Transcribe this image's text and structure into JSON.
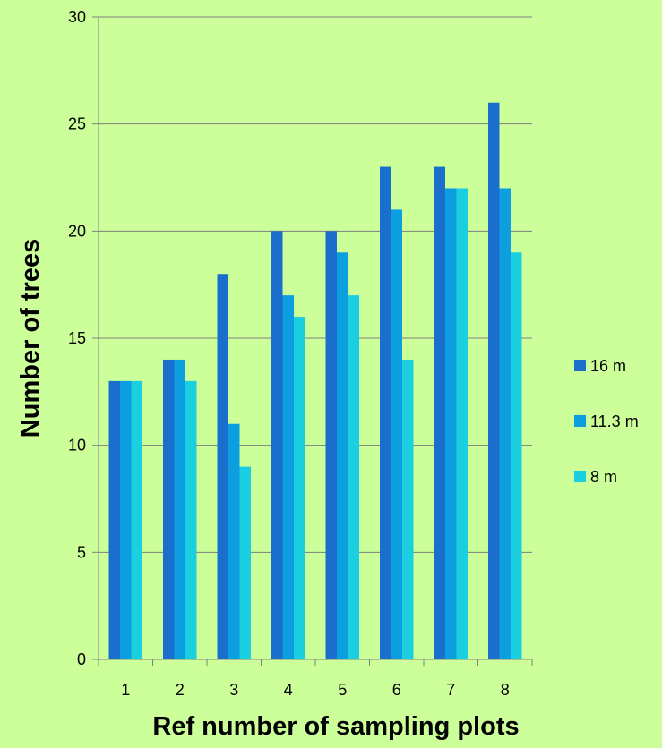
{
  "chart_data": {
    "type": "bar",
    "title": "",
    "xlabel": "Ref number of sampling plots",
    "ylabel": "Number of trees",
    "categories": [
      "1",
      "2",
      "3",
      "4",
      "5",
      "6",
      "7",
      "8"
    ],
    "series": [
      {
        "name": "16 m",
        "color": "#1a6fcd",
        "values": [
          13,
          14,
          18,
          20,
          20,
          23,
          23,
          26
        ]
      },
      {
        "name": "11.3 m",
        "color": "#0d9ee0",
        "values": [
          13,
          14,
          11,
          17,
          19,
          21,
          22,
          22
        ]
      },
      {
        "name": "8 m",
        "color": "#19cfe0",
        "values": [
          13,
          13,
          9,
          16,
          17,
          14,
          22,
          19
        ]
      }
    ],
    "ylim": [
      0,
      30
    ],
    "yticks": [
      "0",
      "5",
      "10",
      "15",
      "20",
      "25",
      "30"
    ],
    "grid": true,
    "legend_position": "right",
    "background_color": "#ccff99",
    "axis_color": "#7f7f7f"
  }
}
